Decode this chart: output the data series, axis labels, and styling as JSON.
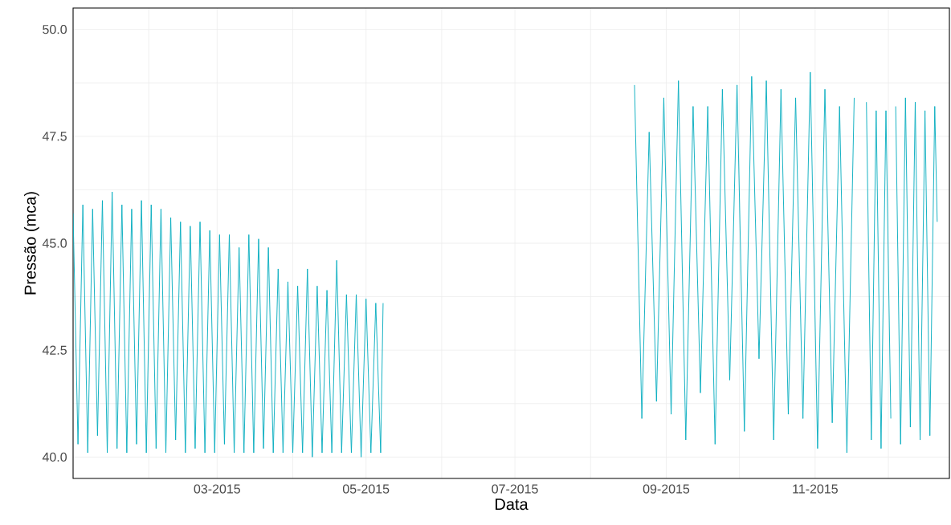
{
  "chart_data": {
    "type": "line",
    "xlabel": "Data",
    "ylabel": "Pressão (mca)",
    "grid": true,
    "line_style": "solid",
    "marker": "none",
    "xlim": [
      "2015-01-01",
      "2015-12-26"
    ],
    "ylim": [
      39.5,
      50.5
    ],
    "xticks": [
      {
        "value": "2015-02-01",
        "label": null
      },
      {
        "value": "2015-03-01",
        "label": "03-2015"
      },
      {
        "value": "2015-04-01",
        "label": null
      },
      {
        "value": "2015-05-01",
        "label": "05-2015"
      },
      {
        "value": "2015-06-01",
        "label": null
      },
      {
        "value": "2015-07-01",
        "label": "07-2015"
      },
      {
        "value": "2015-08-01",
        "label": null
      },
      {
        "value": "2015-09-01",
        "label": "09-2015"
      },
      {
        "value": "2015-10-01",
        "label": null
      },
      {
        "value": "2015-11-01",
        "label": "11-2015"
      },
      {
        "value": "2015-12-01",
        "label": null
      }
    ],
    "yticks": [
      {
        "value": 40,
        "label": "40.0"
      },
      {
        "value": 41.25,
        "label": null
      },
      {
        "value": 42.5,
        "label": "42.5"
      },
      {
        "value": 43.75,
        "label": null
      },
      {
        "value": 45,
        "label": "45.0"
      },
      {
        "value": 46.25,
        "label": null
      },
      {
        "value": 47.5,
        "label": "47.5"
      },
      {
        "value": 48.75,
        "label": null
      },
      {
        "value": 50,
        "label": "50.0"
      }
    ],
    "series": [
      {
        "color": "#07adc0",
        "x": [
          "2015-01-01",
          "2015-01-03",
          "2015-01-05",
          "2015-01-07",
          "2015-01-09",
          "2015-01-11",
          "2015-01-13",
          "2015-01-15",
          "2015-01-17",
          "2015-01-19",
          "2015-01-21",
          "2015-01-23",
          "2015-01-25",
          "2015-01-27",
          "2015-01-29",
          "2015-01-31",
          "2015-02-02",
          "2015-02-04",
          "2015-02-06",
          "2015-02-08",
          "2015-02-10",
          "2015-02-12",
          "2015-02-14",
          "2015-02-16",
          "2015-02-18",
          "2015-02-20",
          "2015-02-22",
          "2015-02-24",
          "2015-02-26",
          "2015-02-28",
          "2015-03-02",
          "2015-03-04",
          "2015-03-06",
          "2015-03-08",
          "2015-03-10",
          "2015-03-12",
          "2015-03-14",
          "2015-03-16",
          "2015-03-18",
          "2015-03-20",
          "2015-03-22",
          "2015-03-24",
          "2015-03-26",
          "2015-03-28",
          "2015-03-30",
          "2015-04-01",
          "2015-04-03",
          "2015-04-05",
          "2015-04-07",
          "2015-04-09",
          "2015-04-11",
          "2015-04-13",
          "2015-04-15",
          "2015-04-17",
          "2015-04-19",
          "2015-04-21",
          "2015-04-23",
          "2015-04-25",
          "2015-04-27",
          "2015-04-29",
          "2015-05-01",
          "2015-05-03",
          "2015-05-05",
          "2015-05-07",
          "2015-05-08",
          "2015-06-30",
          "2015-08-19",
          "2015-08-22",
          "2015-08-25",
          "2015-08-28",
          "2015-08-31",
          "2015-09-03",
          "2015-09-06",
          "2015-09-09",
          "2015-09-12",
          "2015-09-15",
          "2015-09-18",
          "2015-09-21",
          "2015-09-24",
          "2015-09-27",
          "2015-09-30",
          "2015-10-03",
          "2015-10-06",
          "2015-10-09",
          "2015-10-12",
          "2015-10-15",
          "2015-10-18",
          "2015-10-21",
          "2015-10-24",
          "2015-10-27",
          "2015-10-30",
          "2015-11-02",
          "2015-11-05",
          "2015-11-08",
          "2015-11-11",
          "2015-11-14",
          "2015-11-17",
          "2015-11-20",
          "2015-11-22",
          "2015-11-24",
          "2015-11-26",
          "2015-11-28",
          "2015-11-30",
          "2015-12-02",
          "2015-12-03",
          "2015-12-04",
          "2015-12-06",
          "2015-12-08",
          "2015-12-10",
          "2015-12-12",
          "2015-12-14",
          "2015-12-16",
          "2015-12-18",
          "2015-12-20",
          "2015-12-21"
        ],
        "values": [
          45.7,
          40.3,
          45.9,
          40.1,
          45.8,
          40.5,
          46.0,
          40.1,
          46.2,
          40.2,
          45.9,
          40.1,
          45.8,
          40.3,
          46.0,
          40.1,
          45.9,
          40.2,
          45.8,
          40.1,
          45.6,
          40.4,
          45.5,
          40.1,
          45.4,
          40.2,
          45.5,
          40.1,
          45.3,
          40.1,
          45.2,
          40.3,
          45.2,
          40.1,
          44.9,
          40.1,
          45.2,
          40.1,
          45.1,
          40.2,
          44.9,
          40.1,
          44.4,
          40.1,
          44.1,
          40.1,
          44.0,
          40.1,
          44.4,
          40.0,
          44.0,
          40.1,
          43.9,
          40.1,
          44.6,
          40.1,
          43.8,
          40.1,
          43.8,
          40.0,
          43.7,
          40.1,
          43.6,
          40.1,
          43.6,
          null,
          48.7,
          40.9,
          47.6,
          41.3,
          48.4,
          41.0,
          48.8,
          40.4,
          48.2,
          41.5,
          48.2,
          40.3,
          48.6,
          41.8,
          48.7,
          40.6,
          48.9,
          42.3,
          48.8,
          40.4,
          48.6,
          41.0,
          48.4,
          40.9,
          49.0,
          40.2,
          48.6,
          40.8,
          48.2,
          40.1,
          48.4,
          null,
          48.3,
          40.4,
          48.1,
          40.2,
          48.1,
          40.9,
          null,
          48.2,
          40.3,
          48.4,
          40.7,
          48.3,
          40.4,
          48.1,
          40.5,
          48.2,
          45.5
        ]
      }
    ]
  }
}
